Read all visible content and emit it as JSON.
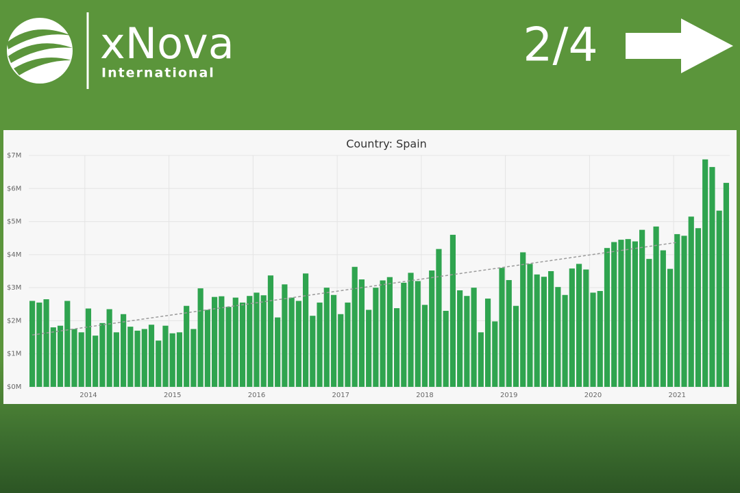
{
  "header": {
    "brand": "xNova",
    "subtitle": "International",
    "page_indicator": "2/4"
  },
  "chart_data": {
    "type": "bar",
    "title": "Country: Spain",
    "categories": [
      null,
      null,
      null,
      null,
      null,
      null,
      null,
      null,
      "2014",
      null,
      null,
      null,
      null,
      null,
      null,
      null,
      null,
      null,
      null,
      null,
      "2015",
      null,
      null,
      null,
      null,
      null,
      null,
      null,
      null,
      null,
      null,
      null,
      "2016",
      null,
      null,
      null,
      null,
      null,
      null,
      null,
      null,
      null,
      null,
      null,
      "2017",
      null,
      null,
      null,
      null,
      null,
      null,
      null,
      null,
      null,
      null,
      null,
      "2018",
      null,
      null,
      null,
      null,
      null,
      null,
      null,
      null,
      null,
      null,
      null,
      "2019",
      null,
      null,
      null,
      null,
      null,
      null,
      null,
      null,
      null,
      null,
      null,
      "2020",
      null,
      null,
      null,
      null,
      null,
      null,
      null,
      null,
      null,
      null,
      null,
      "2021",
      null,
      null,
      null,
      null,
      null,
      null,
      null
    ],
    "values": [
      2.6,
      2.55,
      2.65,
      1.8,
      1.85,
      2.6,
      1.75,
      1.65,
      2.37,
      1.55,
      1.93,
      2.35,
      1.65,
      2.2,
      1.82,
      1.7,
      1.75,
      1.88,
      1.4,
      1.85,
      1.62,
      1.65,
      2.45,
      1.75,
      2.98,
      2.33,
      2.72,
      2.74,
      2.42,
      2.7,
      2.55,
      2.75,
      2.85,
      2.77,
      3.37,
      2.1,
      3.1,
      2.7,
      2.6,
      3.43,
      2.15,
      2.55,
      3.0,
      2.78,
      2.2,
      2.55,
      3.63,
      3.25,
      2.33,
      3.0,
      3.22,
      3.32,
      2.38,
      3.15,
      3.45,
      3.2,
      2.48,
      3.52,
      4.17,
      2.3,
      4.6,
      2.92,
      2.75,
      3.0,
      1.65,
      2.67,
      1.98,
      3.6,
      3.23,
      2.45,
      4.07,
      3.72,
      3.4,
      3.33,
      3.5,
      3.02,
      2.78,
      3.58,
      3.72,
      3.55,
      2.85,
      2.9,
      4.2,
      4.38,
      4.45,
      4.47,
      4.4,
      4.75,
      3.87,
      4.85,
      4.13,
      3.57,
      4.62,
      4.57,
      5.15,
      4.8,
      6.88,
      6.65,
      5.33,
      6.17
    ],
    "color": "#2fa44f",
    "trendline": {
      "values": [
        1.57,
        4.37
      ],
      "color": "#999999"
    },
    "ylim": [
      0,
      7
    ],
    "yticks": [
      {
        "value": 0,
        "label": "$0M"
      },
      {
        "value": 1,
        "label": "$1M"
      },
      {
        "value": 2,
        "label": "$2M"
      },
      {
        "value": 3,
        "label": "$3M"
      },
      {
        "value": 4,
        "label": "$4M"
      },
      {
        "value": 5,
        "label": "$5M"
      },
      {
        "value": 6,
        "label": "$6M"
      },
      {
        "value": 7,
        "label": "$7M"
      }
    ],
    "grid": true
  }
}
